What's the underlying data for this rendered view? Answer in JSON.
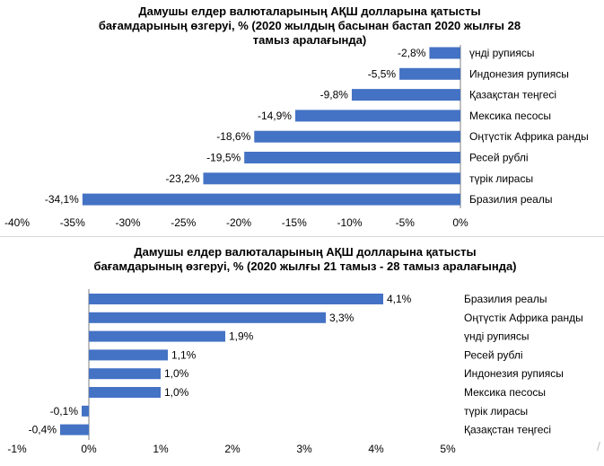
{
  "chart_data": [
    {
      "type": "bar",
      "orientation": "horizontal",
      "title": "Дамушы елдер валюталарының АҚШ долларына қатысты\nбағамдарының өзгеруі, %  (2020 жылдың басынан бастап 2020 жылғы 28\nтамыз аралағында)",
      "categories": [
        "үнді рупиясы",
        "Индонезия рупиясы",
        "Қазақстан теңгесі",
        "Мексика песосы",
        "Оңтүстік Африка ранды",
        "Ресей рублі",
        "түрік лирасы",
        "Бразилия реалы"
      ],
      "values": [
        -2.8,
        -5.5,
        -9.8,
        -14.9,
        -18.6,
        -19.5,
        -23.2,
        -34.1
      ],
      "value_labels": [
        "-2,8%",
        "-5,5%",
        "-9,8%",
        "-14,9%",
        "-18,6%",
        "-19,5%",
        "-23,2%",
        "-34,1%"
      ],
      "xlim": [
        -40,
        0
      ],
      "ticks": [
        -40,
        -35,
        -30,
        -25,
        -20,
        -15,
        -10,
        -5,
        0
      ],
      "tick_labels": [
        "-40%",
        "-35%",
        "-30%",
        "-25%",
        "-20%",
        "-15%",
        "-10%",
        "-5%",
        "0%"
      ],
      "color": "#4472c4",
      "legend": "none",
      "grid": false
    },
    {
      "type": "bar",
      "orientation": "horizontal",
      "title": "Дамушы елдер валюталарының АҚШ долларына қатысты\nбағамдарының өзгеруі, %  (2020 жылғы 21 тамыз - 28 тамыз аралағында)",
      "categories": [
        "Бразилия реалы",
        "Оңтүстік Африка ранды",
        "үнді рупиясы",
        "Ресей рублі",
        "Индонезия рупиясы",
        "Мексика песосы",
        "түрік лирасы",
        "Қазақстан теңгесі"
      ],
      "values": [
        4.1,
        3.3,
        1.9,
        1.1,
        1.0,
        1.0,
        -0.1,
        -0.4
      ],
      "value_labels": [
        "4,1%",
        "3,3%",
        "1,9%",
        "1,1%",
        "1,0%",
        "1,0%",
        "-0,1%",
        "-0,4%"
      ],
      "xlim": [
        -1,
        5
      ],
      "ticks": [
        -1,
        0,
        1,
        2,
        3,
        4,
        5
      ],
      "tick_labels": [
        "-1%",
        "0%",
        "1%",
        "2%",
        "3%",
        "4%",
        "5%"
      ],
      "color": "#4472c4",
      "legend": "none",
      "grid": false
    }
  ]
}
